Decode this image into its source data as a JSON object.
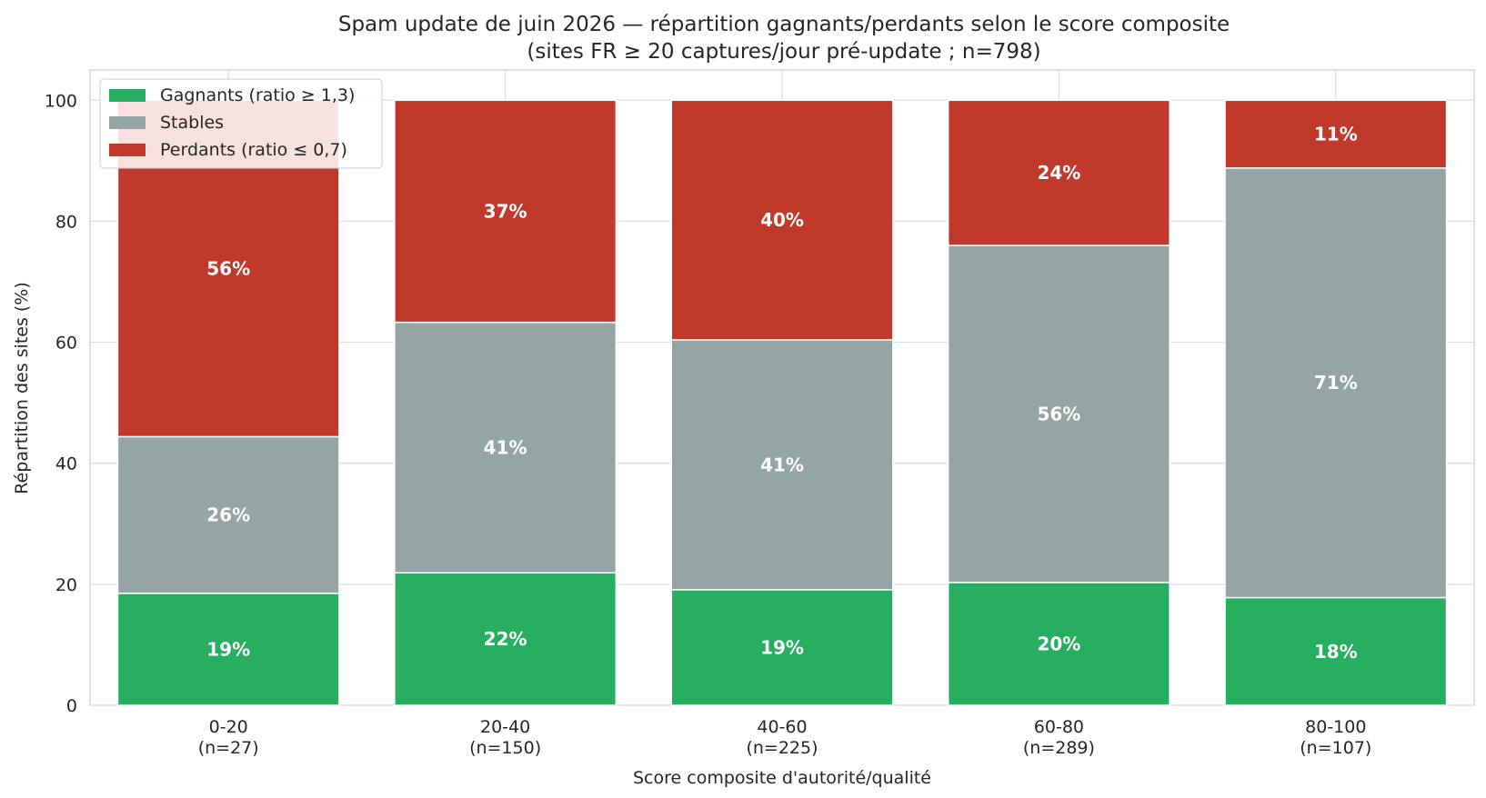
{
  "chart_data": {
    "type": "bar",
    "stacked": true,
    "title": [
      "Spam update de juin 2026 — répartition gagnants/perdants selon le score composite",
      "(sites FR ≥ 20 captures/jour pré-update ; n=798)"
    ],
    "xlabel": "Score composite d'autorité/qualité",
    "ylabel": "Répartition des sites (%)",
    "ylim": [
      0,
      105
    ],
    "yticks": [
      0,
      20,
      40,
      60,
      80,
      100
    ],
    "categories": [
      "0-20",
      "20-40",
      "40-60",
      "60-80",
      "80-100"
    ],
    "category_counts": [
      "(n=27)",
      "(n=150)",
      "(n=225)",
      "(n=289)",
      "(n=107)"
    ],
    "series": [
      {
        "name": "Gagnants (ratio ≥ 1,3)",
        "color": "#27ae60",
        "values": [
          18.5,
          21.9,
          19.1,
          20.3,
          17.8
        ],
        "labels": [
          "19%",
          "22%",
          "19%",
          "20%",
          "18%"
        ]
      },
      {
        "name": "Stables",
        "color": "#95a5a6",
        "values": [
          25.9,
          41.4,
          41.3,
          55.7,
          71.0
        ],
        "labels": [
          "26%",
          "41%",
          "41%",
          "56%",
          "71%"
        ]
      },
      {
        "name": "Perdants (ratio ≤ 0,7)",
        "color": "#c0392b",
        "values": [
          55.6,
          36.7,
          39.6,
          24.0,
          11.2
        ],
        "labels": [
          "56%",
          "37%",
          "40%",
          "24%",
          "11%"
        ]
      }
    ],
    "grid": true,
    "legend_position": "top-left"
  }
}
